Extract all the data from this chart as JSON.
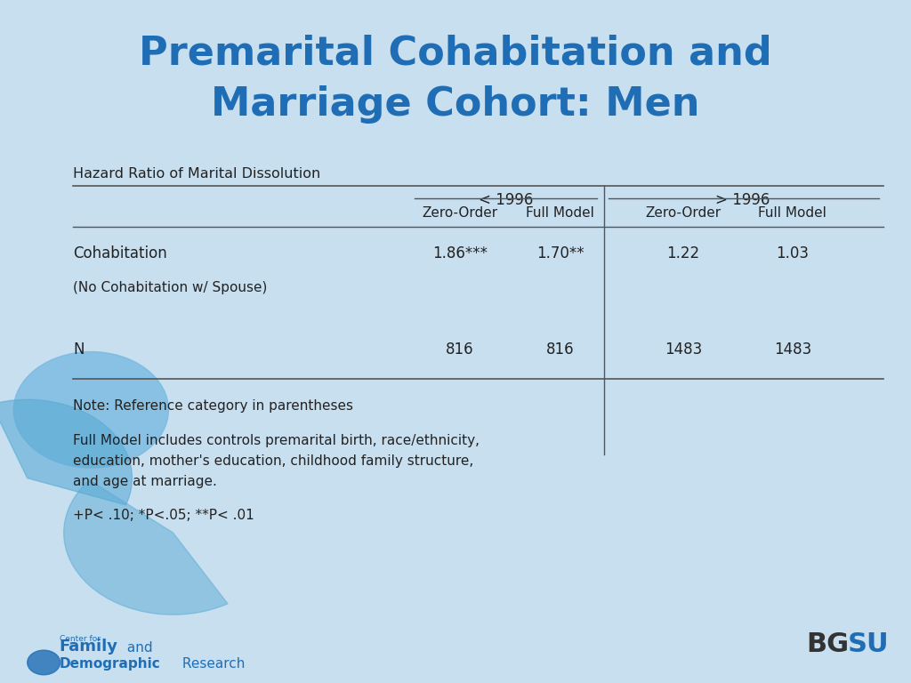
{
  "title_line1": "Premarital Cohabitation and",
  "title_line2": "Marriage Cohort: Men",
  "title_color": "#1F6EB5",
  "bg_color": "#C8DFF0",
  "table_label": "Hazard Ratio of Marital Dissolution",
  "col_group1": "< 1996",
  "col_group2": "_> 1996",
  "col1": "Zero-Order",
  "col2": "Full Model",
  "col3": "Zero-Order",
  "col4": "Full Model",
  "row1_label": "Cohabitation",
  "row1_sublabel": "(No Cohabitation w/ Spouse)",
  "row1_col1": "1.86***",
  "row1_col2": "1.70**",
  "row1_col3": "1.22",
  "row1_col4": "1.03",
  "row_n_label": "N",
  "row_n_col1": "816",
  "row_n_col2": "816",
  "row_n_col3": "1483",
  "row_n_col4": "1483",
  "note1": "Note: Reference category in parentheses",
  "note2": "Full Model includes controls premarital birth, race/ethnicity,",
  "note3": "education, mother's education, childhood family structure,",
  "note4": "and age at marriage.",
  "note5": "+P< .10; *P<.05; **P< .01",
  "text_color": "#1a1a1a",
  "dark_blue": "#1F6EB5",
  "table_text_color": "#222222",
  "line_color": "#555555"
}
